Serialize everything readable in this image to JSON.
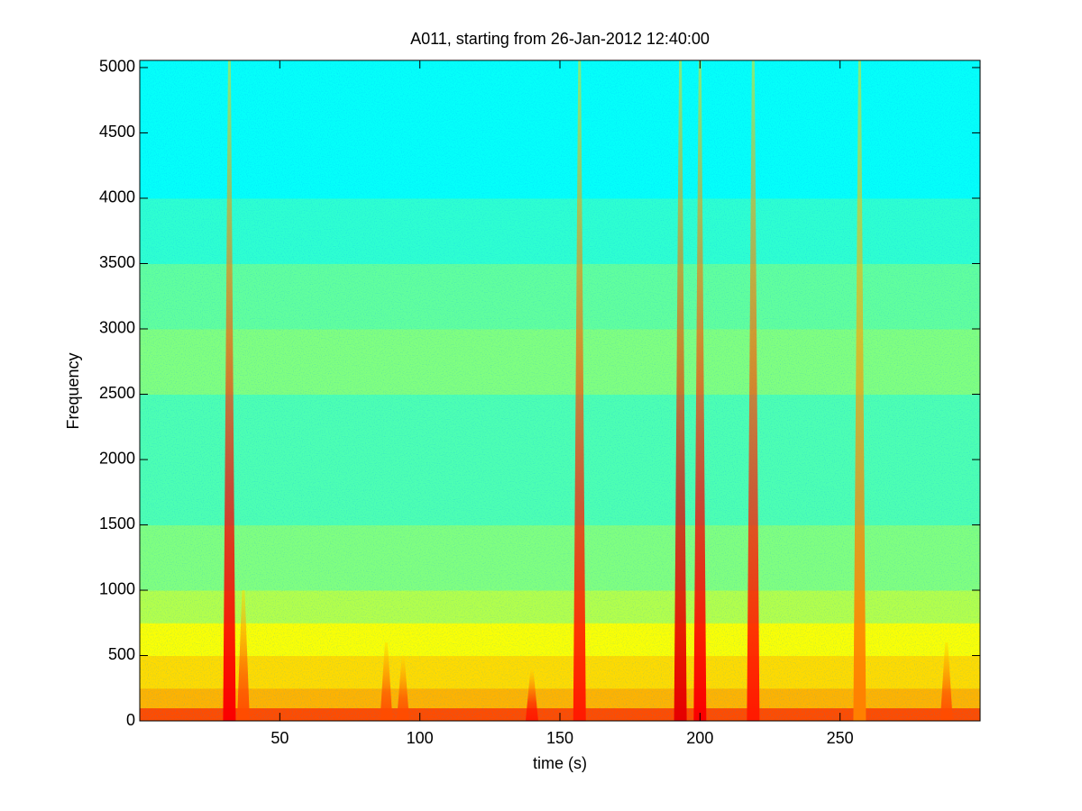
{
  "chart_data": {
    "type": "spectrogram",
    "title": "A011, starting from 26-Jan-2012 12:40:00",
    "x_label": "time (s)",
    "y_label": "Frequency",
    "colormap": "jet",
    "xlim": [
      0,
      300
    ],
    "ylim": [
      0,
      5055
    ],
    "xticks": [
      50,
      100,
      150,
      200,
      250
    ],
    "yticks": [
      0,
      500,
      1000,
      1500,
      2000,
      2500,
      3000,
      3500,
      4000,
      4500,
      5000
    ],
    "bands": {
      "edges": [
        0,
        100,
        250,
        500,
        750,
        1000,
        1500,
        2500,
        3000,
        3500,
        4000,
        5055
      ],
      "values": [
        0.8,
        0.7,
        0.66,
        0.62,
        0.55,
        0.5,
        0.45,
        0.5,
        0.47,
        0.42,
        0.38
      ]
    },
    "events": {
      "time": [
        32,
        37,
        88,
        94,
        140,
        157,
        193,
        200,
        219,
        257,
        288
      ],
      "fmax": [
        5055,
        1000,
        600,
        500,
        400,
        5055,
        5055,
        5055,
        5055,
        5055,
        600
      ],
      "level": [
        0.88,
        0.8,
        0.8,
        0.8,
        0.85,
        0.85,
        0.9,
        0.88,
        0.85,
        0.75,
        0.8
      ]
    }
  }
}
